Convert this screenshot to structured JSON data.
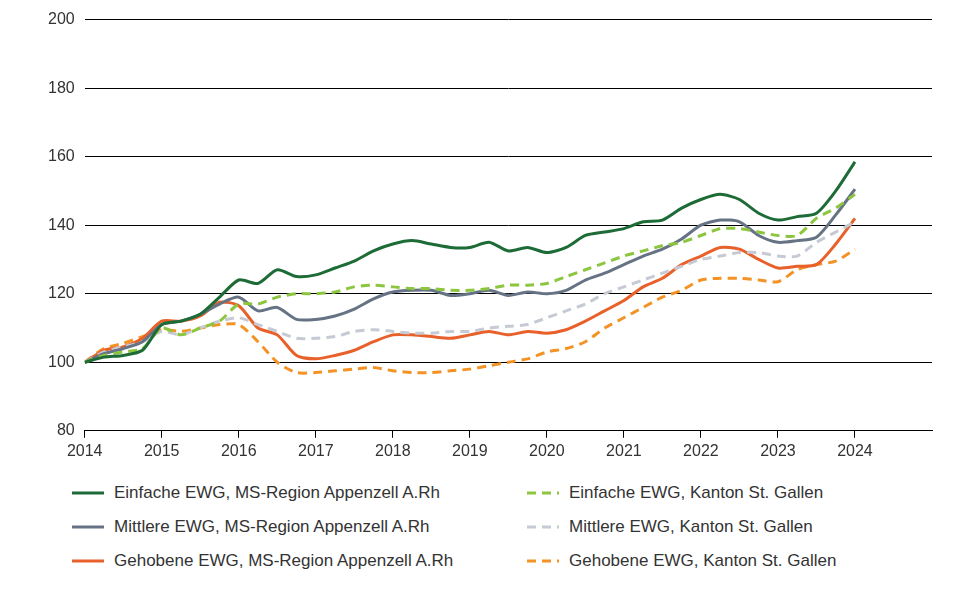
{
  "chart_data": {
    "type": "line",
    "x": [
      2014,
      2014.25,
      2014.5,
      2014.75,
      2015,
      2015.25,
      2015.5,
      2015.75,
      2016,
      2016.25,
      2016.5,
      2016.75,
      2017,
      2017.25,
      2017.5,
      2017.75,
      2018,
      2018.25,
      2018.5,
      2018.75,
      2019,
      2019.25,
      2019.5,
      2019.75,
      2020,
      2020.25,
      2020.5,
      2020.75,
      2021,
      2021.25,
      2021.5,
      2021.75,
      2022,
      2022.25,
      2022.5,
      2022.75,
      2023,
      2023.25,
      2023.5,
      2023.75,
      2024
    ],
    "series": [
      {
        "name": "Einfache EWG, MS-Region Appenzell A.Rh",
        "color": "#1d6b36",
        "line_style": "solid",
        "values": [
          100,
          101.5,
          102,
          103.5,
          111,
          112,
          114,
          119,
          124,
          123,
          127,
          125,
          125.5,
          127.5,
          129.5,
          132.5,
          134.5,
          135.5,
          134.5,
          133.5,
          133.5,
          135,
          132.5,
          133.5,
          132,
          133.5,
          137,
          138,
          139,
          141,
          141.5,
          145,
          147.5,
          149,
          147.5,
          143.5,
          141.5,
          142.5,
          143.5,
          150,
          158.5
        ]
      },
      {
        "name": "Einfache EWG, Kanton St. Gallen",
        "color": "#8cc63f",
        "line_style": "dashed",
        "values": [
          100,
          102,
          103,
          104,
          110,
          108,
          110,
          112,
          117,
          117,
          119,
          120,
          120,
          120.5,
          122,
          122.5,
          122,
          121.5,
          121.5,
          121,
          121,
          121.5,
          122.5,
          122.5,
          123,
          125,
          127,
          129,
          131,
          132.5,
          134,
          135,
          137,
          139,
          139,
          138,
          137,
          137,
          142,
          145,
          149
        ]
      },
      {
        "name": "Mittlere EWG, MS-Region Appenzell A.Rh",
        "color": "#657384",
        "line_style": "solid",
        "values": [
          100,
          102.5,
          104,
          106,
          111,
          112,
          114,
          117,
          119,
          115,
          116,
          112.5,
          112.5,
          113.5,
          115.5,
          118.5,
          120.5,
          121,
          121,
          119.5,
          120,
          121,
          119.5,
          120.5,
          120,
          121,
          124,
          126,
          128.5,
          131,
          133,
          136,
          140,
          141.5,
          141,
          137,
          135,
          135.5,
          136.5,
          143,
          150.5
        ]
      },
      {
        "name": "Mittlere EWG, Kanton St. Gallen",
        "color": "#c6cad4",
        "line_style": "dashed",
        "values": [
          100,
          103,
          104.5,
          106,
          109,
          108,
          110,
          112,
          113,
          111,
          109,
          107,
          107,
          107.5,
          109,
          109.5,
          109,
          108.5,
          108.5,
          109,
          109,
          110,
          110.5,
          111,
          113,
          115,
          117,
          120,
          122,
          124,
          126,
          128,
          130,
          131,
          132,
          132,
          131,
          131,
          135,
          138,
          141
        ]
      },
      {
        "name": "Gehobene EWG, MS-Region Appenzell A.Rh",
        "color": "#e8602a",
        "line_style": "solid",
        "values": [
          100,
          103.5,
          104.5,
          107,
          112,
          112,
          113.5,
          117.5,
          116.5,
          110,
          108,
          102,
          101,
          102,
          103.5,
          106,
          108,
          108,
          107.5,
          107,
          108,
          109,
          108,
          109,
          108.5,
          109.5,
          112,
          115,
          118,
          122,
          124.5,
          128.5,
          131,
          133.5,
          133,
          130,
          127.5,
          128,
          128.5,
          134.5,
          142
        ]
      },
      {
        "name": "Gehobene EWG, Kanton St. Gallen",
        "color": "#f39325",
        "line_style": "dashed",
        "values": [
          100,
          104,
          105.5,
          107.5,
          109.5,
          109,
          110,
          111,
          111,
          106,
          100,
          97,
          97,
          97.5,
          98,
          98.5,
          97.5,
          97,
          97,
          97.5,
          98,
          99,
          100,
          101,
          103,
          104,
          106,
          110,
          113,
          116,
          119,
          121,
          124,
          124.5,
          124.5,
          124,
          123.5,
          127,
          128.5,
          129.5,
          133
        ]
      }
    ],
    "xlim": [
      2014,
      2025
    ],
    "xticks": [
      2014,
      2015,
      2016,
      2017,
      2018,
      2019,
      2020,
      2021,
      2022,
      2023,
      2024
    ],
    "ylim": [
      80,
      200
    ],
    "yticks": [
      80,
      100,
      120,
      140,
      160,
      180,
      200
    ],
    "grid": true,
    "legend": "bottom"
  }
}
